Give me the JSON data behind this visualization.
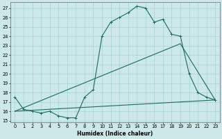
{
  "xlabel": "Humidex (Indice chaleur)",
  "bg_color": "#cce8e8",
  "line_color": "#1a6b5a",
  "xlim": [
    -0.5,
    23.5
  ],
  "ylim": [
    14.8,
    27.6
  ],
  "xticks": [
    0,
    1,
    2,
    3,
    4,
    5,
    6,
    7,
    8,
    9,
    10,
    11,
    12,
    13,
    14,
    15,
    16,
    17,
    18,
    19,
    20,
    21,
    22,
    23
  ],
  "yticks": [
    15,
    16,
    17,
    18,
    19,
    20,
    21,
    22,
    23,
    24,
    25,
    26,
    27
  ],
  "line1_x": [
    0,
    1,
    2,
    3,
    4,
    5,
    6,
    7,
    8,
    9,
    10,
    11,
    12,
    13,
    14,
    15,
    16,
    17,
    18,
    19,
    20,
    21,
    22,
    23
  ],
  "line1_y": [
    17.5,
    16.2,
    16.0,
    15.8,
    16.0,
    15.5,
    15.3,
    15.3,
    17.5,
    18.3,
    24.0,
    25.5,
    26.0,
    26.5,
    27.2,
    27.0,
    25.5,
    25.8,
    24.2,
    24.0,
    20.0,
    18.0,
    17.5,
    17.2
  ],
  "line2_x": [
    0,
    23
  ],
  "line2_y": [
    16.0,
    17.2
  ],
  "line3_x": [
    0,
    19,
    23
  ],
  "line3_y": [
    16.0,
    23.2,
    17.2
  ],
  "xlabel_fontsize": 5.5,
  "tick_fontsize": 4.8
}
